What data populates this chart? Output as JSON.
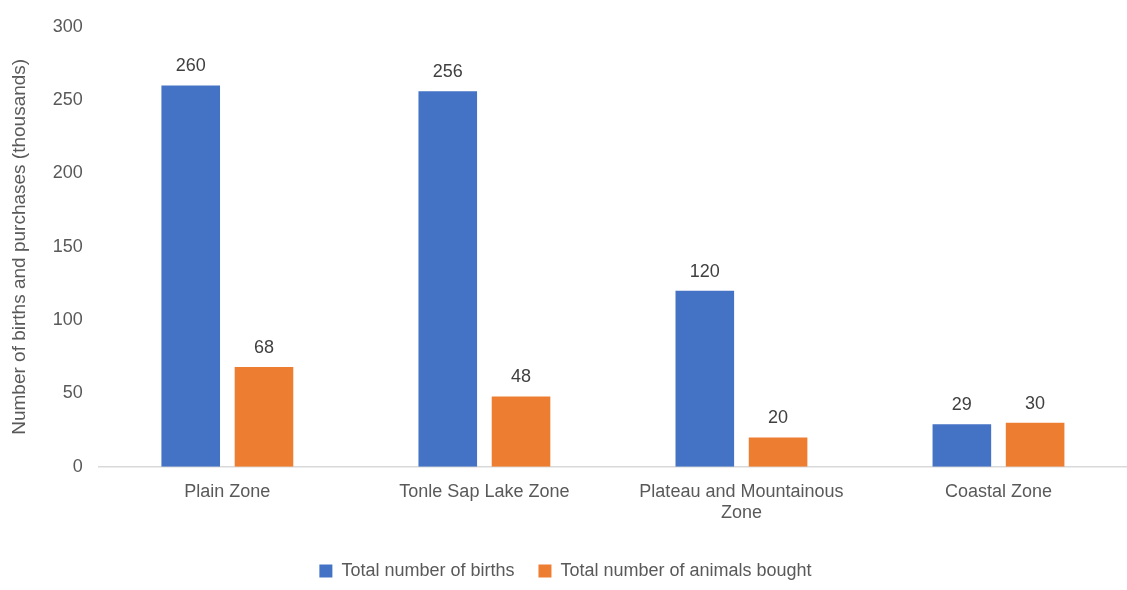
{
  "chart_data": {
    "type": "bar",
    "ylabel": "Number of births and purchases (thousands)",
    "categories": [
      "Plain Zone",
      "Tonle Sap Lake Zone",
      "Plateau and Mountainous Zone",
      "Coastal Zone"
    ],
    "series": [
      {
        "name": "Total number of births",
        "color": "#4472c4",
        "values": [
          260,
          256,
          120,
          29
        ]
      },
      {
        "name": "Total number of animals bought",
        "color": "#ed7d31",
        "values": [
          68,
          48,
          20,
          30
        ]
      }
    ],
    "ylim": [
      0,
      300
    ],
    "yticks": [
      0,
      50,
      100,
      150,
      200,
      250,
      300
    ],
    "grid": false,
    "legend": "bottom",
    "data_labels": true
  }
}
